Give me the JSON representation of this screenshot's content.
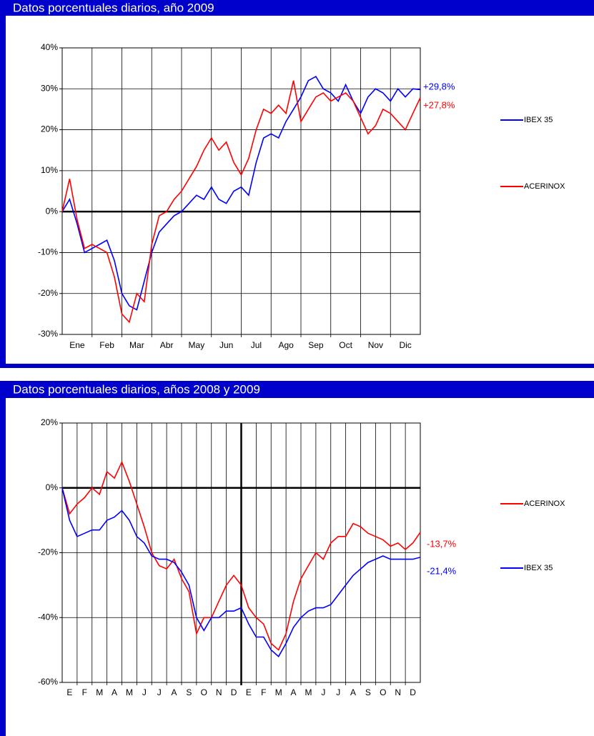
{
  "chart_data": [
    {
      "type": "line",
      "title": "Datos porcentuales diarios, año 2009",
      "categories": [
        "Ene",
        "Feb",
        "Mar",
        "Abr",
        "May",
        "Jun",
        "Jul",
        "Ago",
        "Sep",
        "Oct",
        "Nov",
        "Dic"
      ],
      "x": [
        0,
        0.25,
        0.5,
        0.75,
        1,
        1.25,
        1.5,
        1.75,
        2,
        2.25,
        2.5,
        2.75,
        3,
        3.25,
        3.5,
        3.75,
        4,
        4.25,
        4.5,
        4.75,
        5,
        5.25,
        5.5,
        5.75,
        6,
        6.25,
        6.5,
        6.75,
        7,
        7.25,
        7.5,
        7.75,
        8,
        8.25,
        8.5,
        8.75,
        9,
        9.25,
        9.5,
        9.75,
        10,
        10.25,
        10.5,
        10.75,
        11,
        11.25,
        11.5,
        11.75,
        12
      ],
      "xlim": [
        0,
        12
      ],
      "ylim": [
        -30,
        40
      ],
      "yticks": [
        {
          "value": -30,
          "label": "-30%"
        },
        {
          "value": -20,
          "label": "-20%"
        },
        {
          "value": -10,
          "label": "-10%"
        },
        {
          "value": 0,
          "label": "0%"
        },
        {
          "value": 10,
          "label": "10%"
        },
        {
          "value": 20,
          "label": "20%"
        },
        {
          "value": 30,
          "label": "30%"
        },
        {
          "value": 40,
          "label": "40%"
        }
      ],
      "grid": true,
      "series": [
        {
          "name": "IBEX 35",
          "color": "#0000ff",
          "end_label": "+29,8%",
          "values": [
            0,
            3,
            -3,
            -10,
            -9,
            -8,
            -7,
            -12,
            -20,
            -23,
            -24,
            -17,
            -10,
            -5,
            -3,
            -1,
            0,
            2,
            4,
            3,
            6,
            3,
            2,
            5,
            6,
            4,
            12,
            18,
            19,
            18,
            22,
            25,
            28,
            32,
            33,
            30,
            29,
            27,
            31,
            27,
            24,
            28,
            30,
            29,
            27,
            30,
            28,
            30,
            29.8
          ]
        },
        {
          "name": "ACERINOX",
          "color": "#ff0000",
          "end_label": "+27,8%",
          "values": [
            0,
            8,
            -2,
            -9,
            -8,
            -9,
            -10,
            -16,
            -25,
            -27,
            -20,
            -22,
            -8,
            -1,
            0,
            3,
            5,
            8,
            11,
            15,
            18,
            15,
            17,
            12,
            9,
            13,
            20,
            25,
            24,
            26,
            24,
            32,
            22,
            25,
            28,
            29,
            27,
            28,
            29,
            27,
            23,
            19,
            21,
            25,
            24,
            22,
            20,
            24,
            27.8
          ]
        }
      ]
    },
    {
      "type": "line",
      "title": "Datos porcentuales diarios, años 2008 y 2009",
      "categories": [
        "E",
        "F",
        "M",
        "A",
        "M",
        "J",
        "J",
        "A",
        "S",
        "O",
        "N",
        "D",
        "E",
        "F",
        "M",
        "A",
        "M",
        "J",
        "J",
        "A",
        "S",
        "O",
        "N",
        "D"
      ],
      "x": [
        0,
        0.5,
        1,
        1.5,
        2,
        2.5,
        3,
        3.5,
        4,
        4.5,
        5,
        5.5,
        6,
        6.5,
        7,
        7.5,
        8,
        8.5,
        9,
        9.5,
        10,
        10.5,
        11,
        11.5,
        12,
        12.5,
        13,
        13.5,
        14,
        14.5,
        15,
        15.5,
        16,
        16.5,
        17,
        17.5,
        18,
        18.5,
        19,
        19.5,
        20,
        20.5,
        21,
        21.5,
        22,
        22.5,
        23,
        23.5,
        24
      ],
      "xlim": [
        0,
        24
      ],
      "ylim": [
        -60,
        20
      ],
      "yticks": [
        {
          "value": -60,
          "label": "-60%"
        },
        {
          "value": -40,
          "label": "-40%"
        },
        {
          "value": -20,
          "label": "-20%"
        },
        {
          "value": 0,
          "label": "0%"
        },
        {
          "value": 20,
          "label": "20%"
        }
      ],
      "grid": true,
      "series": [
        {
          "name": "ACERINOX",
          "color": "#ff0000",
          "end_label": "-13,7%",
          "values": [
            0,
            -8,
            -5,
            -3,
            0,
            -2,
            5,
            3,
            8,
            2,
            -5,
            -12,
            -20,
            -24,
            -25,
            -22,
            -28,
            -32,
            -45,
            -40,
            -40,
            -35,
            -30,
            -27,
            -30,
            -37,
            -40,
            -42,
            -48,
            -50,
            -45,
            -35,
            -28,
            -24,
            -20,
            -22,
            -17,
            -15,
            -15,
            -11,
            -12,
            -14,
            -15,
            -16,
            -18,
            -17,
            -19,
            -17,
            -13.7
          ]
        },
        {
          "name": "IBEX 35",
          "color": "#0000ff",
          "end_label": "-21,4%",
          "values": [
            0,
            -10,
            -15,
            -14,
            -13,
            -13,
            -10,
            -9,
            -7,
            -10,
            -15,
            -17,
            -21,
            -22,
            -22,
            -23,
            -26,
            -30,
            -40,
            -44,
            -40,
            -40,
            -38,
            -38,
            -37,
            -42,
            -46,
            -46,
            -50,
            -52,
            -48,
            -43,
            -40,
            -38,
            -37,
            -37,
            -36,
            -33,
            -30,
            -27,
            -25,
            -23,
            -22,
            -21,
            -22,
            -22,
            -22,
            -22,
            -21.4
          ]
        }
      ]
    }
  ]
}
